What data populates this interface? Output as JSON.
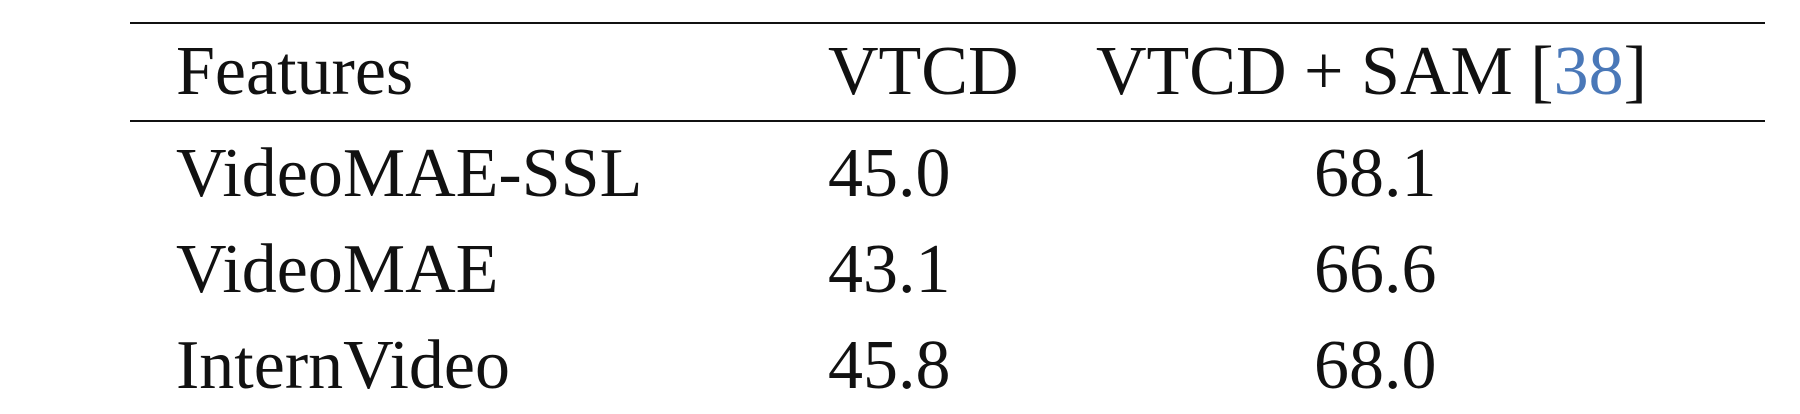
{
  "table": {
    "headers": {
      "features": "Features",
      "vtcd": "VTCD",
      "vtcd_sam_prefix": "VTCD + SAM [",
      "vtcd_sam_cite": "38",
      "vtcd_sam_suffix": "]"
    },
    "rows": [
      {
        "feature": "VideoMAE-SSL",
        "vtcd": "45.0",
        "vtcd_sam": "68.1"
      },
      {
        "feature": "VideoMAE",
        "vtcd": "43.1",
        "vtcd_sam": "66.6"
      },
      {
        "feature": "InternVideo",
        "vtcd": "45.8",
        "vtcd_sam": "68.0"
      }
    ]
  },
  "colors": {
    "citation": "#4a78b8",
    "text": "#111111",
    "rule": "#111111"
  }
}
